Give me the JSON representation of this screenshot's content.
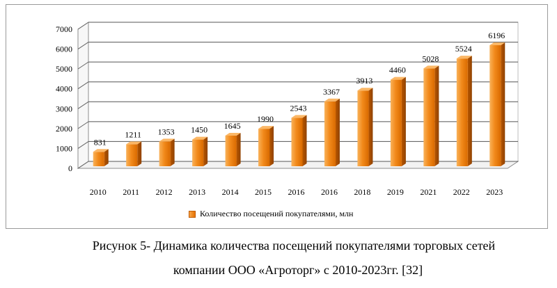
{
  "chart_data": {
    "type": "bar",
    "categories": [
      "2010",
      "2011",
      "2012",
      "2013",
      "2014",
      "2015",
      "2016",
      "2016",
      "2018",
      "2019",
      "2021",
      "2022",
      "2023"
    ],
    "series": [
      {
        "name": "Количество посещений покупателями, млн",
        "values": [
          831,
          1211,
          1353,
          1450,
          1645,
          1990,
          2543,
          3367,
          3913,
          4460,
          5028,
          5524,
          6196
        ]
      }
    ],
    "ylim": [
      0,
      7000
    ],
    "yticks": [
      0,
      1000,
      2000,
      3000,
      4000,
      5000,
      6000,
      7000
    ],
    "grid": true,
    "legend": "bottom",
    "style": "3d",
    "bar_color": "#f08c1e"
  },
  "caption": {
    "line1": "Рисунок 5- Динамика количества посещений покупателями торговых сетей",
    "line2": "компании ООО «Агроторг» с 2010-2023гг. [32]"
  }
}
